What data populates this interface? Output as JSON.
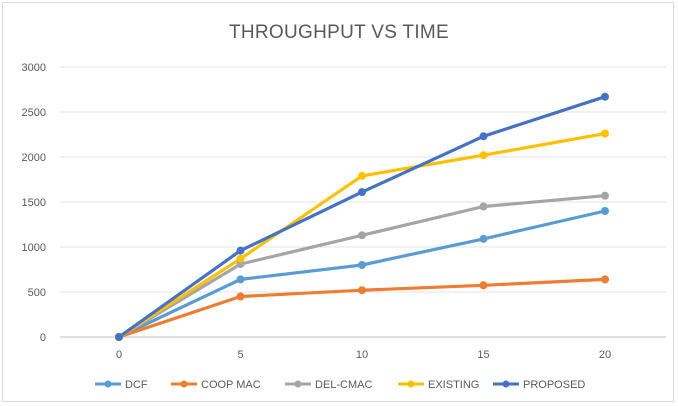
{
  "chart_data": {
    "type": "line",
    "title": "THROUGHPUT VS TIME",
    "xlabel": "",
    "ylabel": "",
    "x": [
      0,
      5,
      10,
      15,
      20
    ],
    "xlim": [
      0,
      20
    ],
    "ylim": [
      0,
      3000
    ],
    "yticks": [
      0,
      500,
      1000,
      1500,
      2000,
      2500,
      3000
    ],
    "grid": true,
    "legend_position": "bottom",
    "series": [
      {
        "name": "DCF",
        "color": "#5b9bd5",
        "values": [
          0,
          640,
          800,
          1090,
          1400
        ]
      },
      {
        "name": "COOP MAC",
        "color": "#ed7d31",
        "values": [
          0,
          450,
          520,
          575,
          640
        ]
      },
      {
        "name": "DEL-CMAC",
        "color": "#a5a5a5",
        "values": [
          0,
          810,
          1130,
          1450,
          1570
        ]
      },
      {
        "name": "EXISTING",
        "color": "#ffc000",
        "values": [
          0,
          870,
          1790,
          2020,
          2260
        ]
      },
      {
        "name": "PROPOSED",
        "color": "#4472c4",
        "values": [
          0,
          960,
          1610,
          2230,
          2670
        ]
      }
    ]
  }
}
